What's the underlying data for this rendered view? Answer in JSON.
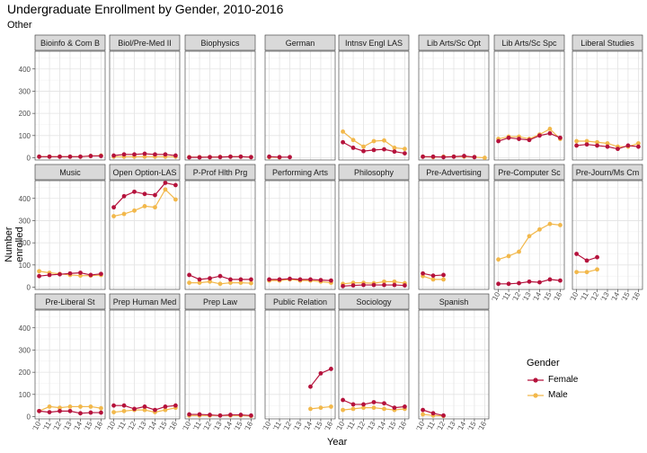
{
  "title": "Undergraduate Enrollment by Gender, 2010-2016",
  "subtitle": "Other",
  "chart_data": {
    "type": "line",
    "xlabel": "Year",
    "ylabel": "Number enrolled",
    "ylim": [
      -10,
      480
    ],
    "yticks": [
      0,
      100,
      200,
      300,
      400
    ],
    "xticks": [
      2010,
      2011,
      2012,
      2013,
      2014,
      2015,
      2016
    ],
    "xtick_labels": [
      "'10",
      "'11",
      "'12",
      "'13",
      "'14",
      "'15",
      "'16"
    ],
    "grid": true,
    "legend": {
      "title": "Gender",
      "placement": "bottom-right",
      "entries": [
        "Female",
        "Male"
      ]
    },
    "colors": {
      "Female": "#b5123c",
      "Male": "#f2b84b"
    },
    "panels": [
      {
        "name": "Bioinfo & Com B",
        "x": [
          2010,
          2011,
          2012,
          2013,
          2014,
          2015,
          2016
        ],
        "female": [
          5,
          5,
          5,
          5,
          5,
          8,
          8
        ],
        "male": [
          5,
          5,
          5,
          5,
          5,
          8,
          10
        ]
      },
      {
        "name": "Biol/Pre-Med II",
        "x": [
          2010,
          2011,
          2012,
          2013,
          2014,
          2015,
          2016
        ],
        "female": [
          10,
          15,
          15,
          18,
          15,
          15,
          10
        ],
        "male": [
          5,
          5,
          5,
          5,
          5,
          5,
          5
        ]
      },
      {
        "name": "Biophysics",
        "x": [
          2010,
          2011,
          2012,
          2013,
          2014,
          2015,
          2016
        ],
        "female": [
          2,
          2,
          3,
          3,
          5,
          5,
          3
        ],
        "male": [
          3,
          3,
          3,
          4,
          5,
          5,
          3
        ]
      },
      {
        "name": "German",
        "x": [
          2010,
          2011,
          2012
        ],
        "female": [
          5,
          3,
          3
        ],
        "male": [
          3,
          2,
          null
        ]
      },
      {
        "name": "Intnsv Engl LAS",
        "x": [
          2010,
          2011,
          2012,
          2013,
          2014,
          2015,
          2016
        ],
        "female": [
          70,
          45,
          30,
          35,
          38,
          28,
          20
        ],
        "male": [
          118,
          80,
          50,
          75,
          78,
          45,
          40
        ]
      },
      {
        "name": "Lib Arts/Sc Opt",
        "x": [
          2010,
          2011,
          2012,
          2013,
          2014,
          2015,
          2016
        ],
        "female": [
          5,
          5,
          3,
          5,
          8,
          3,
          null
        ],
        "male": [
          5,
          3,
          5,
          5,
          5,
          3,
          0
        ]
      },
      {
        "name": "Lib Arts/Sc Spc",
        "x": [
          2010,
          2011,
          2012,
          2013,
          2014,
          2015,
          2016
        ],
        "female": [
          75,
          90,
          85,
          80,
          100,
          110,
          90
        ],
        "male": [
          85,
          95,
          95,
          85,
          105,
          130,
          85
        ]
      },
      {
        "name": "Liberal Studies",
        "x": [
          2010,
          2011,
          2012,
          2013,
          2014,
          2015,
          2016
        ],
        "female": [
          55,
          60,
          55,
          50,
          40,
          55,
          50
        ],
        "male": [
          75,
          75,
          70,
          65,
          50,
          50,
          65
        ]
      },
      {
        "name": "Music",
        "x": [
          2010,
          2011,
          2012,
          2013,
          2014,
          2015,
          2016
        ],
        "female": [
          50,
          55,
          58,
          62,
          65,
          55,
          60
        ],
        "male": [
          72,
          65,
          60,
          55,
          52,
          52,
          55
        ]
      },
      {
        "name": "Open Option-LAS",
        "x": [
          2010,
          2011,
          2012,
          2013,
          2014,
          2015,
          2016
        ],
        "female": [
          360,
          410,
          430,
          420,
          415,
          470,
          460
        ],
        "male": [
          320,
          330,
          345,
          365,
          360,
          440,
          395
        ]
      },
      {
        "name": "P-Prof Hlth Prg",
        "x": [
          2010,
          2011,
          2012,
          2013,
          2014,
          2015,
          2016
        ],
        "female": [
          55,
          35,
          40,
          50,
          35,
          35,
          35
        ],
        "male": [
          20,
          20,
          25,
          15,
          20,
          20,
          18
        ]
      },
      {
        "name": "Performing Arts",
        "x": [
          2010,
          2011,
          2012,
          2013,
          2014,
          2015,
          2016
        ],
        "female": [
          35,
          35,
          38,
          35,
          35,
          32,
          30
        ],
        "male": [
          30,
          30,
          35,
          30,
          30,
          25,
          20
        ]
      },
      {
        "name": "Philosophy",
        "x": [
          2010,
          2011,
          2012,
          2013,
          2014,
          2015,
          2016
        ],
        "female": [
          5,
          8,
          10,
          10,
          10,
          10,
          8
        ],
        "male": [
          15,
          20,
          20,
          18,
          25,
          25,
          18
        ]
      },
      {
        "name": "Pre-Advertising",
        "x": [
          2010,
          2011,
          2012
        ],
        "female": [
          62,
          52,
          55
        ],
        "male": [
          50,
          35,
          35
        ]
      },
      {
        "name": "Pre-Computer Sc",
        "x": [
          2010,
          2011,
          2012,
          2013,
          2014,
          2015,
          2016
        ],
        "female": [
          15,
          15,
          18,
          25,
          22,
          35,
          30
        ],
        "male": [
          125,
          140,
          160,
          230,
          260,
          285,
          280
        ]
      },
      {
        "name": "Pre-Journ/Ms Cm",
        "x": [
          2010,
          2011,
          2012
        ],
        "female": [
          150,
          120,
          135
        ],
        "male": [
          68,
          68,
          80
        ]
      },
      {
        "name": "Pre-Liberal St",
        "x": [
          2010,
          2011,
          2012,
          2013,
          2014,
          2015,
          2016
        ],
        "female": [
          25,
          20,
          25,
          25,
          15,
          18,
          18
        ],
        "male": [
          25,
          45,
          40,
          45,
          45,
          45,
          38
        ]
      },
      {
        "name": "Prep Human Med",
        "x": [
          2010,
          2011,
          2012,
          2013,
          2014,
          2015,
          2016
        ],
        "female": [
          50,
          50,
          35,
          45,
          30,
          45,
          50
        ],
        "male": [
          20,
          25,
          30,
          30,
          20,
          30,
          40
        ]
      },
      {
        "name": "Prep Law",
        "x": [
          2010,
          2011,
          2012,
          2013,
          2014,
          2015,
          2016
        ],
        "female": [
          10,
          10,
          8,
          5,
          8,
          8,
          5
        ],
        "male": [
          5,
          5,
          5,
          5,
          5,
          5,
          3
        ]
      },
      {
        "name": "Public Relation",
        "x": [
          2014,
          2015,
          2016
        ],
        "female": [
          135,
          195,
          215
        ],
        "male": [
          35,
          40,
          45
        ]
      },
      {
        "name": "Sociology",
        "x": [
          2010,
          2011,
          2012,
          2013,
          2014,
          2015,
          2016
        ],
        "female": [
          75,
          55,
          55,
          65,
          60,
          40,
          45
        ],
        "male": [
          30,
          35,
          40,
          40,
          35,
          30,
          35
        ]
      },
      {
        "name": "Spanish",
        "x": [
          2010,
          2011,
          2012
        ],
        "female": [
          30,
          15,
          5
        ],
        "male": [
          10,
          5,
          3
        ]
      }
    ]
  }
}
